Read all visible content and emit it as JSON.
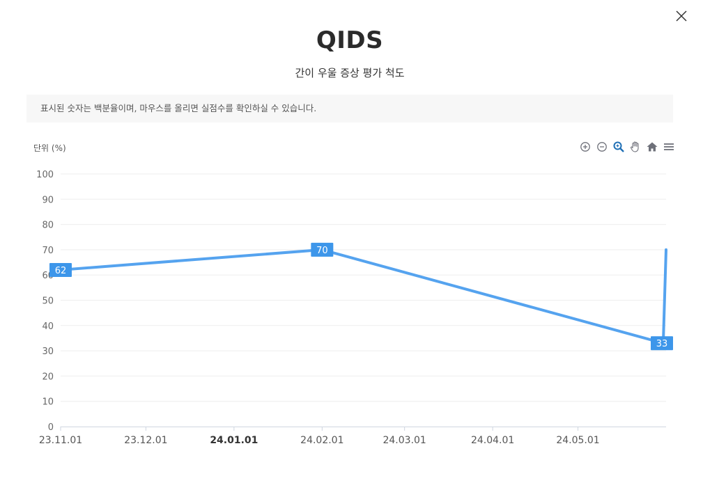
{
  "header": {
    "title": "QIDS",
    "subtitle": "간이 우울 증상 평가 척도"
  },
  "notice": "표시된 숫자는 백분율이며, 마우스를 올리면 실점수를 확인하실 수 있습니다.",
  "toolbar": {
    "icons": [
      "zoom-in-icon",
      "zoom-out-icon",
      "zoom-selection-icon",
      "pan-icon",
      "reset-home-icon",
      "menu-icon"
    ],
    "active_color": "#1f6fb5",
    "icon_color": "#6e7079"
  },
  "chart_data": {
    "type": "line",
    "ylabel": "단위 (%)",
    "ylim": [
      0,
      100
    ],
    "yticks": [
      0,
      10,
      20,
      30,
      40,
      50,
      60,
      70,
      80,
      90,
      100
    ],
    "xticks": [
      "23.11.01",
      "23.12.01",
      "24.01.01",
      "24.02.01",
      "24.03.01",
      "24.04.01",
      "24.05.01"
    ],
    "xticks_bold": [
      "24.01.01"
    ],
    "xlim": [
      "2023-11-01",
      "2024-06-01"
    ],
    "xtick_dates": [
      "2023-11-01",
      "2023-12-01",
      "2024-01-01",
      "2024-02-01",
      "2024-03-01",
      "2024-04-01",
      "2024-05-01"
    ],
    "series": [
      {
        "color": "#55a3ef",
        "points": [
          {
            "x": "2023-11-01",
            "y": 62,
            "label": "62"
          },
          {
            "x": "2024-02-01",
            "y": 70,
            "label": "70"
          },
          {
            "x": "2024-05-31",
            "y": 33,
            "label": "33"
          },
          {
            "x": "2024-06-01",
            "y": 70,
            "label": ""
          }
        ]
      }
    ],
    "grid": true,
    "label_color": "#3d96ea"
  }
}
